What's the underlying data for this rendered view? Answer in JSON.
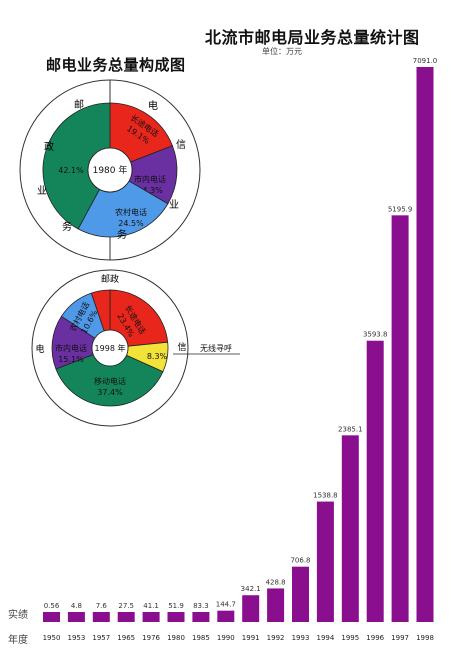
{
  "chart_data": [
    {
      "type": "bar",
      "title": "北流市邮电局业务总量统计图",
      "unit": "单位：万元",
      "value_row_label": "实绩",
      "year_row_label": "年度",
      "categories": [
        "1950",
        "1953",
        "1957",
        "1965",
        "1976",
        "1980",
        "1985",
        "1990",
        "1991",
        "1992",
        "1993",
        "1994",
        "1995",
        "1996",
        "1997",
        "1998"
      ],
      "values": [
        0.56,
        4.8,
        7.6,
        27.5,
        41.1,
        51.9,
        83.3,
        144.7,
        342.1,
        428.8,
        706.8,
        1538.8,
        2385.1,
        3593.8,
        5195.9,
        7091.0
      ],
      "value_labels": [
        "0.56",
        "4.8",
        "7.6",
        "27.5",
        "41.1",
        "51.9",
        "83.3",
        "144.7",
        "342.1",
        "428.8",
        "706.8",
        "1538.8",
        "2385.1",
        "3593.8",
        "5195.9",
        "7091.0"
      ],
      "bar_color": "#8a0f8e"
    },
    {
      "type": "pie",
      "group_title": "邮电业务总量构成图",
      "center_label": "1980 年",
      "outer_ring": {
        "left": [
          "邮",
          "政",
          "业",
          "务"
        ],
        "right": [
          "电",
          "信",
          "业",
          "务"
        ]
      },
      "slices": [
        {
          "label": "长途电话",
          "value": 19.1,
          "pct": "19.1%",
          "color": "#e8261c"
        },
        {
          "label": "市内电话",
          "value": 14.3,
          "pct": "14.3%",
          "color": "#6a2fa0"
        },
        {
          "label": "农村电话",
          "value": 24.5,
          "pct": "24.5%",
          "color": "#4f9ae8"
        },
        {
          "label": "邮政",
          "value": 42.1,
          "pct": "42.1%",
          "color": "#14855a"
        }
      ]
    },
    {
      "type": "pie",
      "center_label": "1998 年",
      "outer_ring": {
        "top": "邮政",
        "left": "电",
        "right": "信"
      },
      "callout": "无线寻呼",
      "slices": [
        {
          "label": "长途电话",
          "value": 23.4,
          "pct": "23.4%",
          "color": "#e8261c"
        },
        {
          "label": "无线寻呼",
          "value": 8.3,
          "pct": "8.3%",
          "color": "#f2e23a"
        },
        {
          "label": "移动电话",
          "value": 37.4,
          "pct": "37.4%",
          "color": "#14855a"
        },
        {
          "label": "市内电话",
          "value": 15.1,
          "pct": "15.1%",
          "color": "#6a2fa0"
        },
        {
          "label": "农村电话",
          "value": 10.6,
          "pct": "10.6%",
          "color": "#4f9ae8"
        },
        {
          "label": "邮政",
          "value": 5.2,
          "pct": "5.2%",
          "color": "#e8261c"
        }
      ]
    }
  ]
}
